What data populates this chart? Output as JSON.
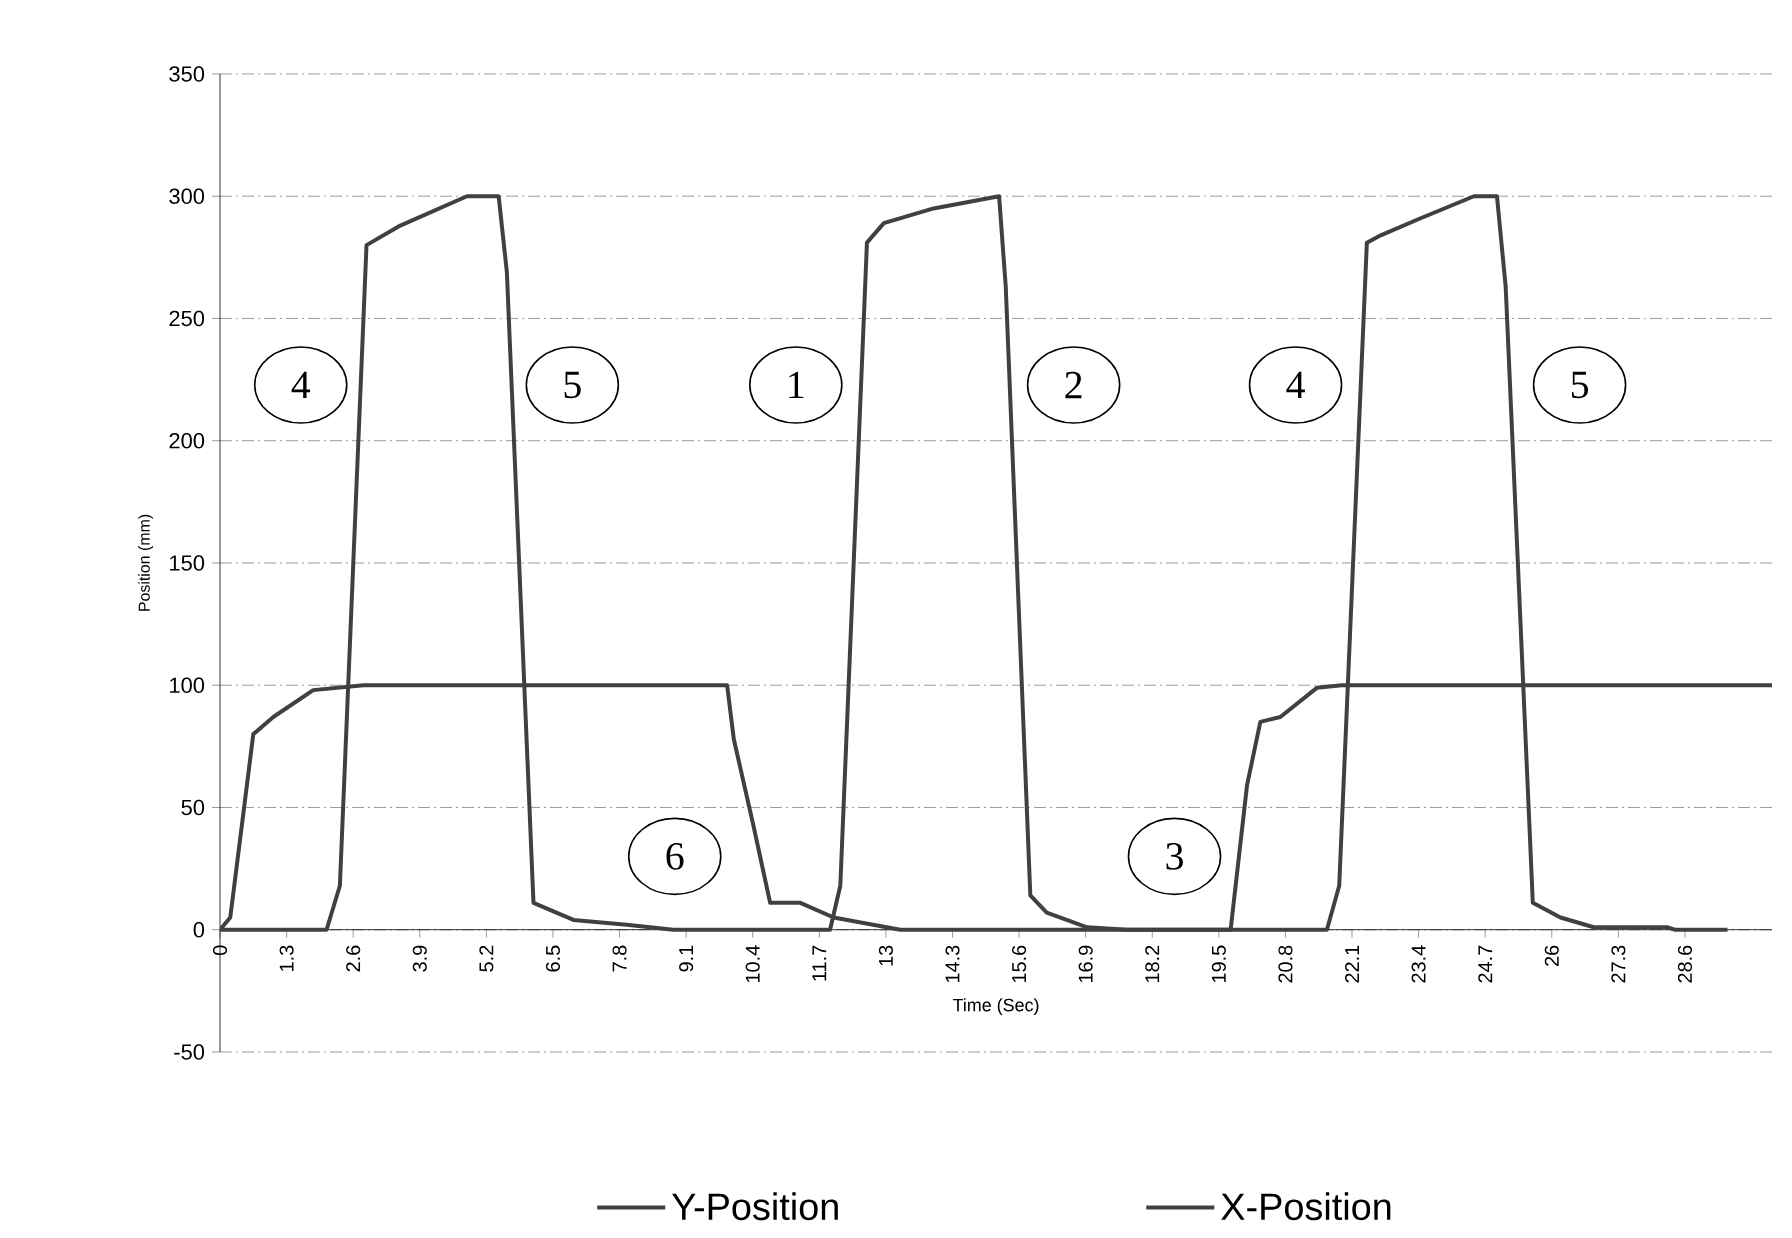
{
  "chart_data": {
    "type": "line",
    "xlabel": "Time (Sec)",
    "ylabel": "Position (mm)",
    "xlim": [
      0,
      30.3
    ],
    "ylim": [
      -50,
      350
    ],
    "xticks": [
      0,
      1.3,
      2.6,
      3.9,
      5.2,
      6.5,
      7.8,
      9.1,
      10.4,
      11.7,
      13,
      14.3,
      15.6,
      16.9,
      18.2,
      19.5,
      20.8,
      22.1,
      23.4,
      24.7,
      26,
      27.3,
      28.6
    ],
    "yticks": [
      -50,
      0,
      50,
      100,
      150,
      200,
      250,
      300,
      350
    ],
    "grid": "y",
    "legend": "bottom",
    "marker": "none",
    "line_style": "solid",
    "series": [
      {
        "name": "Y-Position",
        "color": "#404040",
        "x": [
          0,
          0.2,
          0.65,
          1.04,
          1.82,
          2.8,
          9.9,
          10.03,
          10.42,
          10.74,
          11.33,
          11.98,
          13.28,
          19.73,
          20.05,
          20.31,
          20.7,
          21.42,
          21.9,
          30.3
        ],
        "values": [
          0,
          5,
          80,
          87,
          98,
          100,
          100,
          78,
          42,
          11,
          11,
          5,
          0,
          0,
          59,
          85,
          87,
          99,
          100,
          100
        ]
      },
      {
        "name": "X-Position",
        "color": "#404040",
        "x": [
          0,
          2.08,
          2.34,
          2.86,
          3.52,
          4.82,
          5.44,
          5.6,
          6.12,
          6.9,
          7.94,
          8.85,
          11.91,
          12.11,
          12.63,
          12.96,
          13.93,
          15.21,
          15.34,
          15.82,
          16.14,
          16.93,
          17.71,
          21.61,
          21.85,
          22.39,
          22.66,
          23.44,
          24.48,
          24.93,
          25.1,
          25.63,
          26.17,
          26.82,
          28.25,
          28.4,
          29.43
        ],
        "values": [
          0,
          0,
          18,
          280,
          288,
          300,
          300,
          269,
          11,
          4,
          2,
          0,
          0,
          18,
          281,
          289,
          295,
          300,
          263,
          14,
          7,
          1,
          0,
          0,
          18,
          281,
          284,
          291,
          300,
          300,
          263,
          11,
          5,
          1,
          1,
          0,
          0
        ]
      }
    ],
    "annotations": [
      "4",
      "5",
      "1",
      "2",
      "4",
      "5",
      "6",
      "3"
    ]
  }
}
